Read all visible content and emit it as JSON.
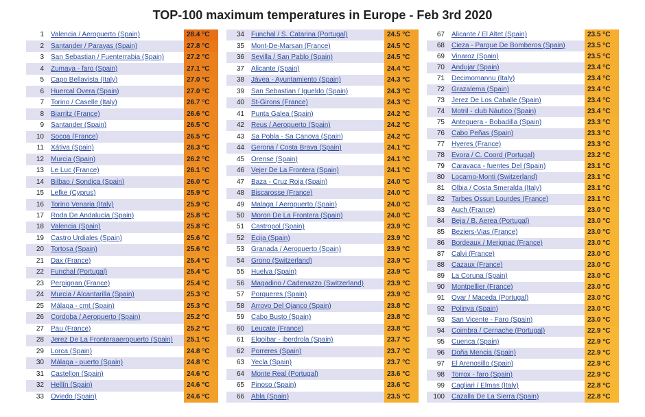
{
  "title": "TOP-100 maximum temperatures in Europe - Feb 3rd 2020",
  "temp_unit": "°C",
  "stripe_colors": {
    "a": "#e0e0f0",
    "b": "#ffffff"
  },
  "link_color": "#2b4b9c",
  "title_fontsize": 18,
  "row_fontsize": 10,
  "temp_color_scale": {
    "min": 22.8,
    "max": 28.4,
    "from": "#f7b733",
    "to": "#e67017"
  },
  "columns_split": [
    33,
    33,
    34
  ],
  "rows": [
    {
      "rank": 1,
      "location": "Valencia / Aeropuerto (Spain)",
      "temp": 28.4
    },
    {
      "rank": 2,
      "location": "Santander / Parayas (Spain)",
      "temp": 27.8
    },
    {
      "rank": 3,
      "location": "San Sebastian / Fuenterrabia (Spain)",
      "temp": 27.2
    },
    {
      "rank": 4,
      "location": "Zumaya - faro (Spain)",
      "temp": 27.1
    },
    {
      "rank": 5,
      "location": "Capo Bellavista (Italy)",
      "temp": 27.0
    },
    {
      "rank": 6,
      "location": "Huercal Overa (Spain)",
      "temp": 27.0
    },
    {
      "rank": 7,
      "location": "Torino / Caselle (Italy)",
      "temp": 26.7
    },
    {
      "rank": 8,
      "location": "Biarritz (France)",
      "temp": 26.6
    },
    {
      "rank": 9,
      "location": "Santander (Spain)",
      "temp": 26.5
    },
    {
      "rank": 10,
      "location": "Socoa (France)",
      "temp": 26.5
    },
    {
      "rank": 11,
      "location": "Xátiva (Spain)",
      "temp": 26.3
    },
    {
      "rank": 12,
      "location": "Murcia (Spain)",
      "temp": 26.2
    },
    {
      "rank": 13,
      "location": "Le Luc (France)",
      "temp": 26.1
    },
    {
      "rank": 14,
      "location": "Bilbao / Sondica (Spain)",
      "temp": 26.0
    },
    {
      "rank": 15,
      "location": "Lefke (Cyprus)",
      "temp": 25.9
    },
    {
      "rank": 16,
      "location": "Torino Venaria (Italy)",
      "temp": 25.9
    },
    {
      "rank": 17,
      "location": "Roda De Andalucía (Spain)",
      "temp": 25.8
    },
    {
      "rank": 18,
      "location": "Valencia (Spain)",
      "temp": 25.8
    },
    {
      "rank": 19,
      "location": "Castro Urdiales (Spain)",
      "temp": 25.6
    },
    {
      "rank": 20,
      "location": "Tortosa (Spain)",
      "temp": 25.6
    },
    {
      "rank": 21,
      "location": "Dax (France)",
      "temp": 25.4
    },
    {
      "rank": 22,
      "location": "Funchal (Portugal)",
      "temp": 25.4
    },
    {
      "rank": 23,
      "location": "Perpignan (France)",
      "temp": 25.4
    },
    {
      "rank": 24,
      "location": "Murcia / Alcantarilla (Spain)",
      "temp": 25.3
    },
    {
      "rank": 25,
      "location": "Málaga - cmt (Spain)",
      "temp": 25.3
    },
    {
      "rank": 26,
      "location": "Cordoba / Aeropuerto (Spain)",
      "temp": 25.2
    },
    {
      "rank": 27,
      "location": "Pau (France)",
      "temp": 25.2
    },
    {
      "rank": 28,
      "location": "Jerez De La Fronteraaeropuerto (Spain)",
      "temp": 25.1
    },
    {
      "rank": 29,
      "location": "Lorca (Spain)",
      "temp": 24.8
    },
    {
      "rank": 30,
      "location": "Málaga - puerto (Spain)",
      "temp": 24.8
    },
    {
      "rank": 31,
      "location": "Castellon (Spain)",
      "temp": 24.6
    },
    {
      "rank": 32,
      "location": "Hellín (Spain)",
      "temp": 24.6
    },
    {
      "rank": 33,
      "location": "Oviedo (Spain)",
      "temp": 24.6
    },
    {
      "rank": 34,
      "location": "Funchal / S. Catarina (Portugal)",
      "temp": 24.5
    },
    {
      "rank": 35,
      "location": "Mont-De-Marsan (France)",
      "temp": 24.5
    },
    {
      "rank": 36,
      "location": "Sevilla / San Pablo (Spain)",
      "temp": 24.5
    },
    {
      "rank": 37,
      "location": "Alicante (Spain)",
      "temp": 24.4
    },
    {
      "rank": 38,
      "location": "Jávea - Ayuntamiento (Spain)",
      "temp": 24.3
    },
    {
      "rank": 39,
      "location": "San Sebastian / Igueldo (Spain)",
      "temp": 24.3
    },
    {
      "rank": 40,
      "location": "St-Girons (France)",
      "temp": 24.3
    },
    {
      "rank": 41,
      "location": "Punta Galea (Spain)",
      "temp": 24.2
    },
    {
      "rank": 42,
      "location": "Reus / Aeropuerto (Spain)",
      "temp": 24.2
    },
    {
      "rank": 43,
      "location": "Sa Pobla - Sa Canova (Spain)",
      "temp": 24.2
    },
    {
      "rank": 44,
      "location": "Gerona / Costa Brava (Spain)",
      "temp": 24.1
    },
    {
      "rank": 45,
      "location": "Orense (Spain)",
      "temp": 24.1
    },
    {
      "rank": 46,
      "location": "Vejer De La Frontera (Spain)",
      "temp": 24.1
    },
    {
      "rank": 47,
      "location": "Baza - Cruz Roja (Spain)",
      "temp": 24.0
    },
    {
      "rank": 48,
      "location": "Biscarosse (France)",
      "temp": 24.0
    },
    {
      "rank": 49,
      "location": "Malaga / Aeropuerto (Spain)",
      "temp": 24.0
    },
    {
      "rank": 50,
      "location": "Moron De La Frontera (Spain)",
      "temp": 24.0
    },
    {
      "rank": 51,
      "location": "Castropol (Spain)",
      "temp": 23.9
    },
    {
      "rank": 52,
      "location": "Ecija (Spain)",
      "temp": 23.9
    },
    {
      "rank": 53,
      "location": "Granada / Aeropuerto (Spain)",
      "temp": 23.9
    },
    {
      "rank": 54,
      "location": "Grono (Switzerland)",
      "temp": 23.9
    },
    {
      "rank": 55,
      "location": "Huelva (Spain)",
      "temp": 23.9
    },
    {
      "rank": 56,
      "location": "Magadino / Cadenazzo (Switzerland)",
      "temp": 23.9
    },
    {
      "rank": 57,
      "location": "Porqueres (Spain)",
      "temp": 23.9
    },
    {
      "rank": 58,
      "location": "Arroyo Del Ojanco (Spain)",
      "temp": 23.8
    },
    {
      "rank": 59,
      "location": "Cabo Busto (Spain)",
      "temp": 23.8
    },
    {
      "rank": 60,
      "location": "Leucate (France)",
      "temp": 23.8
    },
    {
      "rank": 61,
      "location": "Elgoibar - iberdrola (Spain)",
      "temp": 23.7
    },
    {
      "rank": 62,
      "location": "Porreres (Spain)",
      "temp": 23.7
    },
    {
      "rank": 63,
      "location": "Yecla (Spain)",
      "temp": 23.7
    },
    {
      "rank": 64,
      "location": "Monte Real (Portugal)",
      "temp": 23.6
    },
    {
      "rank": 65,
      "location": "Pinoso (Spain)",
      "temp": 23.6
    },
    {
      "rank": 66,
      "location": "Abla (Spain)",
      "temp": 23.5
    },
    {
      "rank": 67,
      "location": "Alicante / El Altet (Spain)",
      "temp": 23.5
    },
    {
      "rank": 68,
      "location": "Cieza - Parque De Bomberos (Spain)",
      "temp": 23.5
    },
    {
      "rank": 69,
      "location": "Vinaroz (Spain)",
      "temp": 23.5
    },
    {
      "rank": 70,
      "location": "Andujar (Spain)",
      "temp": 23.4
    },
    {
      "rank": 71,
      "location": "Decimomannu (Italy)",
      "temp": 23.4
    },
    {
      "rank": 72,
      "location": "Grazalema (Spain)",
      "temp": 23.4
    },
    {
      "rank": 73,
      "location": "Jerez De Los Caballe (Spain)",
      "temp": 23.4
    },
    {
      "rank": 74,
      "location": "Motril - club Náutico (Spain)",
      "temp": 23.4
    },
    {
      "rank": 75,
      "location": "Antequera - Bobadilla (Spain)",
      "temp": 23.3
    },
    {
      "rank": 76,
      "location": "Cabo Peñas (Spain)",
      "temp": 23.3
    },
    {
      "rank": 77,
      "location": "Hyeres (France)",
      "temp": 23.3
    },
    {
      "rank": 78,
      "location": "Evora / C. Coord (Portugal)",
      "temp": 23.2
    },
    {
      "rank": 79,
      "location": "Caravaca - fuentes Del (Spain)",
      "temp": 23.1
    },
    {
      "rank": 80,
      "location": "Locarno-Monti (Switzerland)",
      "temp": 23.1
    },
    {
      "rank": 81,
      "location": "Olbia / Costa Smeralda (Italy)",
      "temp": 23.1
    },
    {
      "rank": 82,
      "location": "Tarbes Ossun Lourdes (France)",
      "temp": 23.1
    },
    {
      "rank": 83,
      "location": "Auch (France)",
      "temp": 23.0
    },
    {
      "rank": 84,
      "location": "Beja / B. Aerea (Portugal)",
      "temp": 23.0
    },
    {
      "rank": 85,
      "location": "Beziers-Vias (France)",
      "temp": 23.0
    },
    {
      "rank": 86,
      "location": "Bordeaux / Merignac (France)",
      "temp": 23.0
    },
    {
      "rank": 87,
      "location": "Calvi (France)",
      "temp": 23.0
    },
    {
      "rank": 88,
      "location": "Cazaux (France)",
      "temp": 23.0
    },
    {
      "rank": 89,
      "location": "La Coruna (Spain)",
      "temp": 23.0
    },
    {
      "rank": 90,
      "location": "Montpellier (France)",
      "temp": 23.0
    },
    {
      "rank": 91,
      "location": "Ovar / Maceda (Portugal)",
      "temp": 23.0
    },
    {
      "rank": 92,
      "location": "Polinya (Spain)",
      "temp": 23.0
    },
    {
      "rank": 93,
      "location": "San Vicente - Faro (Spain)",
      "temp": 23.0
    },
    {
      "rank": 94,
      "location": "Coimbra / Cernache (Portugal)",
      "temp": 22.9
    },
    {
      "rank": 95,
      "location": "Cuenca (Spain)",
      "temp": 22.9
    },
    {
      "rank": 96,
      "location": "Doña Mencia (Spain)",
      "temp": 22.9
    },
    {
      "rank": 97,
      "location": "El Arenosillo (Spain)",
      "temp": 22.9
    },
    {
      "rank": 98,
      "location": "Torrox - faro (Spain)",
      "temp": 22.9
    },
    {
      "rank": 99,
      "location": "Cagliari / Elmas (Italy)",
      "temp": 22.8
    },
    {
      "rank": 100,
      "location": "Cazalla De La Sierra (Spain)",
      "temp": 22.8
    }
  ]
}
